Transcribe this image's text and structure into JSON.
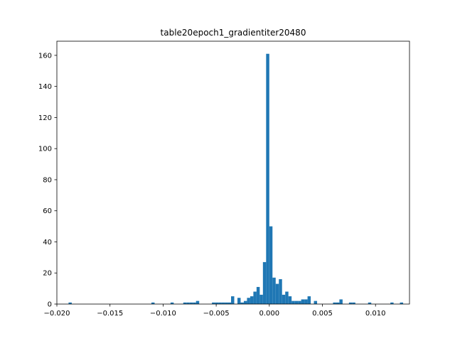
{
  "chart_data": {
    "type": "bar",
    "title": "table20epoch1_gradientiter20480",
    "xlabel": "",
    "ylabel": "",
    "xlim": [
      -0.02,
      0.0132
    ],
    "ylim": [
      0,
      169.1
    ],
    "grid": false,
    "bar_color": "#1f77b4",
    "x_ticks": [
      -0.02,
      -0.015,
      -0.01,
      -0.005,
      0.0,
      0.005,
      0.01
    ],
    "x_tick_labels": [
      "−0.020",
      "−0.015",
      "−0.010",
      "−0.005",
      "0.000",
      "0.005",
      "0.010"
    ],
    "y_ticks": [
      0,
      20,
      40,
      60,
      80,
      100,
      120,
      140,
      160
    ],
    "y_tick_labels": [
      "0",
      "20",
      "40",
      "60",
      "80",
      "100",
      "120",
      "140",
      "160"
    ],
    "bins": [
      {
        "x0": -0.0189,
        "x1": -0.0186,
        "count": 1
      },
      {
        "x0": -0.0111,
        "x1": -0.0108,
        "count": 1
      },
      {
        "x0": -0.0093,
        "x1": -0.009,
        "count": 1
      },
      {
        "x0": -0.0081,
        "x1": -0.0078,
        "count": 1
      },
      {
        "x0": -0.0078,
        "x1": -0.0075,
        "count": 1
      },
      {
        "x0": -0.0075,
        "x1": -0.0072,
        "count": 1
      },
      {
        "x0": -0.0072,
        "x1": -0.0069,
        "count": 1
      },
      {
        "x0": -0.0069,
        "x1": -0.0066,
        "count": 2
      },
      {
        "x0": -0.0054,
        "x1": -0.0051,
        "count": 1
      },
      {
        "x0": -0.0051,
        "x1": -0.0048,
        "count": 1
      },
      {
        "x0": -0.0048,
        "x1": -0.0045,
        "count": 1
      },
      {
        "x0": -0.0045,
        "x1": -0.0042,
        "count": 1
      },
      {
        "x0": -0.0042,
        "x1": -0.0039,
        "count": 1
      },
      {
        "x0": -0.0039,
        "x1": -0.0036,
        "count": 1
      },
      {
        "x0": -0.0036,
        "x1": -0.0033,
        "count": 5
      },
      {
        "x0": -0.003,
        "x1": -0.0027,
        "count": 4
      },
      {
        "x0": -0.0027,
        "x1": -0.0024,
        "count": 1
      },
      {
        "x0": -0.0024,
        "x1": -0.0021,
        "count": 2
      },
      {
        "x0": -0.0021,
        "x1": -0.0018,
        "count": 4
      },
      {
        "x0": -0.0018,
        "x1": -0.0015,
        "count": 5
      },
      {
        "x0": -0.0015,
        "x1": -0.0012,
        "count": 8
      },
      {
        "x0": -0.0012,
        "x1": -0.0009,
        "count": 11
      },
      {
        "x0": -0.0009,
        "x1": -0.0006,
        "count": 6
      },
      {
        "x0": -0.0006,
        "x1": -0.0003,
        "count": 27
      },
      {
        "x0": -0.0003,
        "x1": 0.0,
        "count": 161
      },
      {
        "x0": 0.0,
        "x1": 0.0003,
        "count": 50
      },
      {
        "x0": 0.0003,
        "x1": 0.0006,
        "count": 17
      },
      {
        "x0": 0.0006,
        "x1": 0.0009,
        "count": 13
      },
      {
        "x0": 0.0009,
        "x1": 0.0012,
        "count": 16
      },
      {
        "x0": 0.0012,
        "x1": 0.0015,
        "count": 6
      },
      {
        "x0": 0.0015,
        "x1": 0.0018,
        "count": 8
      },
      {
        "x0": 0.0018,
        "x1": 0.0021,
        "count": 5
      },
      {
        "x0": 0.0021,
        "x1": 0.0024,
        "count": 2
      },
      {
        "x0": 0.0024,
        "x1": 0.0027,
        "count": 2
      },
      {
        "x0": 0.0027,
        "x1": 0.003,
        "count": 2
      },
      {
        "x0": 0.003,
        "x1": 0.0033,
        "count": 3
      },
      {
        "x0": 0.0033,
        "x1": 0.0036,
        "count": 3
      },
      {
        "x0": 0.0036,
        "x1": 0.0039,
        "count": 5
      },
      {
        "x0": 0.0042,
        "x1": 0.0045,
        "count": 2
      },
      {
        "x0": 0.006,
        "x1": 0.0063,
        "count": 1
      },
      {
        "x0": 0.0063,
        "x1": 0.0066,
        "count": 1
      },
      {
        "x0": 0.0066,
        "x1": 0.0069,
        "count": 3
      },
      {
        "x0": 0.0075,
        "x1": 0.0078,
        "count": 1
      },
      {
        "x0": 0.0078,
        "x1": 0.0081,
        "count": 1
      },
      {
        "x0": 0.0093,
        "x1": 0.0096,
        "count": 1
      },
      {
        "x0": 0.0114,
        "x1": 0.0117,
        "count": 1
      },
      {
        "x0": 0.0123,
        "x1": 0.0126,
        "count": 1
      }
    ]
  }
}
